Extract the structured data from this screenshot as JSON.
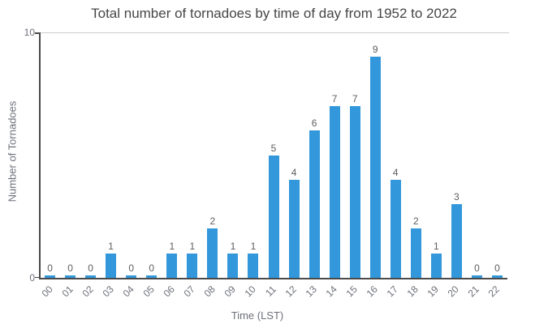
{
  "chart_data": {
    "type": "bar",
    "title": "Total number of tornadoes by time of day from 1952 to 2022",
    "xlabel": "Time (LST)",
    "ylabel": "Number of Tornadoes",
    "categories": [
      "00",
      "01",
      "02",
      "03",
      "04",
      "05",
      "06",
      "07",
      "08",
      "09",
      "10",
      "11",
      "12",
      "13",
      "14",
      "15",
      "16",
      "17",
      "18",
      "19",
      "20",
      "21",
      "22"
    ],
    "values": [
      0,
      0,
      0,
      1,
      0,
      0,
      1,
      1,
      2,
      1,
      1,
      5,
      4,
      6,
      7,
      7,
      9,
      4,
      2,
      1,
      3,
      0,
      0
    ],
    "ylim": [
      0,
      10
    ],
    "yticks": [
      0,
      10
    ],
    "data_labels": true,
    "legend_position": "none",
    "grid": "horizontal line at y max only",
    "x_tick_rotation_deg": -45,
    "colors": {
      "bar": "#3398DB",
      "title_text": "#464646",
      "axis_text": "#6E7079",
      "data_label_text": "#5e5e5e",
      "axis_line": "#4a4a4a",
      "gridline": "#cccccc",
      "background": "#ffffff"
    }
  }
}
